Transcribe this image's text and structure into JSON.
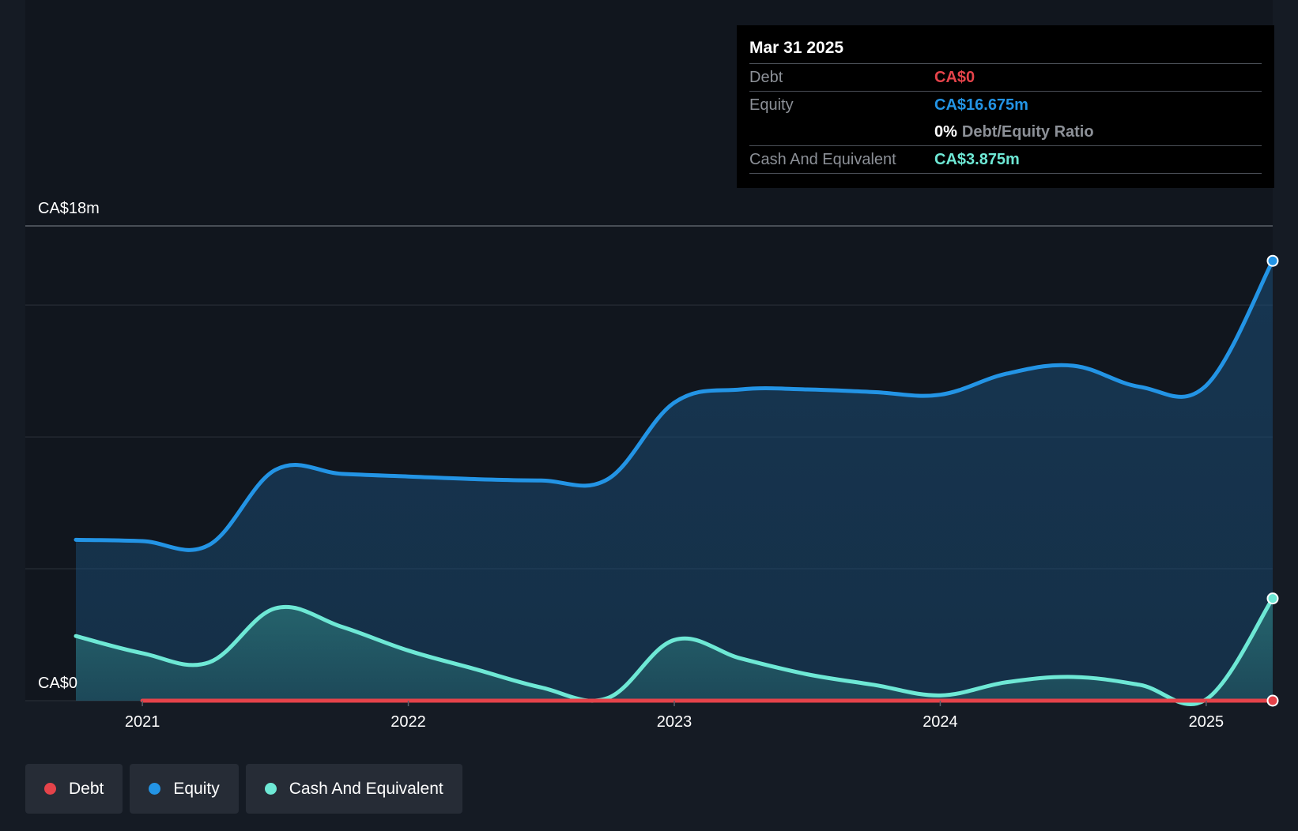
{
  "tooltip": {
    "date": "Mar 31 2025",
    "debt_label": "Debt",
    "debt_value": "CA$0",
    "equity_label": "Equity",
    "equity_value": "CA$16.675m",
    "ratio_pct": "0%",
    "ratio_label": "Debt/Equity Ratio",
    "cash_label": "Cash And Equivalent",
    "cash_value": "CA$3.875m"
  },
  "legend": {
    "debt": "Debt",
    "equity": "Equity",
    "cash": "Cash And Equivalent"
  },
  "colors": {
    "debt": "#e5434a",
    "equity": "#2394e5",
    "cash": "#6ee8d5",
    "background": "#151b24",
    "plot_background": "#11161e",
    "grid": "#2c323b"
  },
  "chart_data": {
    "type": "area",
    "y_top_label": "CA$18m",
    "y_bottom_label": "CA$0",
    "ylim": [
      0,
      18
    ],
    "xlim": [
      2020.75,
      2025.25
    ],
    "x_ticks": [
      2021,
      2022,
      2023,
      2024,
      2025
    ],
    "x_tick_labels": [
      "2021",
      "2022",
      "2023",
      "2024",
      "2025"
    ],
    "grid": true,
    "series": [
      {
        "name": "Equity",
        "key": "equity",
        "x": [
          2020.75,
          2021.0,
          2021.25,
          2021.5,
          2021.75,
          2022.0,
          2022.25,
          2022.5,
          2022.75,
          2023.0,
          2023.25,
          2023.5,
          2023.75,
          2024.0,
          2024.25,
          2024.5,
          2024.75,
          2025.0,
          2025.25
        ],
        "y": [
          6.1,
          6.05,
          5.9,
          8.75,
          8.6,
          8.5,
          8.4,
          8.35,
          8.4,
          11.3,
          11.8,
          11.8,
          11.7,
          11.6,
          12.4,
          12.7,
          11.9,
          11.95,
          16.675
        ]
      },
      {
        "name": "Cash And Equivalent",
        "key": "cash",
        "x": [
          2020.75,
          2021.0,
          2021.25,
          2021.5,
          2021.75,
          2022.0,
          2022.25,
          2022.5,
          2022.75,
          2023.0,
          2023.25,
          2023.5,
          2023.75,
          2024.0,
          2024.25,
          2024.5,
          2024.75,
          2025.0,
          2025.25
        ],
        "y": [
          2.45,
          1.8,
          1.45,
          3.5,
          2.8,
          1.9,
          1.2,
          0.5,
          0.1,
          2.3,
          1.6,
          1.0,
          0.6,
          0.2,
          0.7,
          0.9,
          0.6,
          0.05,
          3.875
        ]
      },
      {
        "name": "Debt",
        "key": "debt",
        "x": [
          2021.0,
          2021.25,
          2021.5,
          2021.75,
          2022.0,
          2022.25,
          2022.5,
          2022.75,
          2023.0,
          2023.25,
          2023.5,
          2023.75,
          2024.0,
          2024.25,
          2024.5,
          2024.75,
          2025.0,
          2025.25
        ],
        "y": [
          0,
          0,
          0,
          0,
          0,
          0,
          0,
          0,
          0,
          0,
          0,
          0,
          0,
          0,
          0,
          0,
          0,
          0
        ]
      }
    ]
  }
}
